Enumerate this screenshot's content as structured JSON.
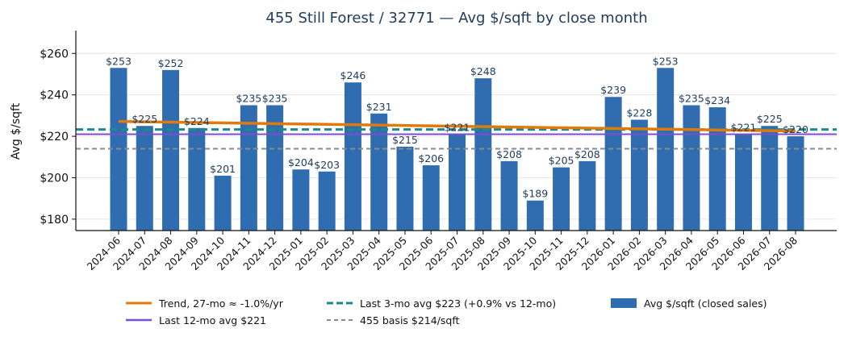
{
  "chart_data": {
    "type": "bar",
    "title": "455 Still Forest / 32771 — Avg $/sqft by close month",
    "xlabel": "",
    "ylabel": "Avg $/sqft",
    "ylim": [
      174.5,
      271
    ],
    "yticks": [
      180,
      200,
      220,
      240,
      260
    ],
    "ytick_labels": [
      "$180",
      "$200",
      "$220",
      "$240",
      "$260"
    ],
    "grid": "horizontal",
    "legend_position": "bottom-center",
    "categories": [
      "2024-06",
      "2024-07",
      "2024-08",
      "2024-09",
      "2024-10",
      "2024-11",
      "2024-12",
      "2025-01",
      "2025-02",
      "2025-03",
      "2025-04",
      "2025-05",
      "2025-06",
      "2025-07",
      "2025-08",
      "2025-09",
      "2025-10",
      "2025-11",
      "2025-12",
      "2026-01",
      "2026-02",
      "2026-03",
      "2026-04",
      "2026-05",
      "2026-06",
      "2026-07",
      "2026-08"
    ],
    "series": [
      {
        "name": "Avg $/sqft (closed sales)",
        "color": "#2f6db0",
        "values": [
          253,
          225,
          252,
          224,
          201,
          235,
          235,
          204,
          203,
          246,
          231,
          215,
          206,
          221,
          248,
          208,
          189,
          205,
          208,
          239,
          228,
          253,
          235,
          234,
          221,
          225,
          220
        ],
        "labels": [
          "$253",
          "$225",
          "$252",
          "$224",
          "$201",
          "$235",
          "$235",
          "$204",
          "$203",
          "$246",
          "$231",
          "$215",
          "$206",
          "$221",
          "$248",
          "$208",
          "$189",
          "$205",
          "$208",
          "$239",
          "$228",
          "$253",
          "$235",
          "$234",
          "$221",
          "$225",
          "$220"
        ]
      }
    ],
    "trend": {
      "name": "Trend, 27-mo ≈ -1.0%/yr",
      "color": "#e07b0b",
      "start": 227.2,
      "end": 222.5
    },
    "reference_lines": [
      {
        "name": "Last 12-mo avg $221",
        "value": 221,
        "color": "#7b4fc9",
        "style": "solid"
      },
      {
        "name": "Last 3-mo avg $223 (+0.9% vs 12-mo)",
        "value": 223.3,
        "color": "#1a8a8a",
        "style": "dashed"
      },
      {
        "name": "455 basis $214/sqft",
        "value": 214,
        "color": "#8a8a8a",
        "style": "dashed"
      }
    ]
  }
}
